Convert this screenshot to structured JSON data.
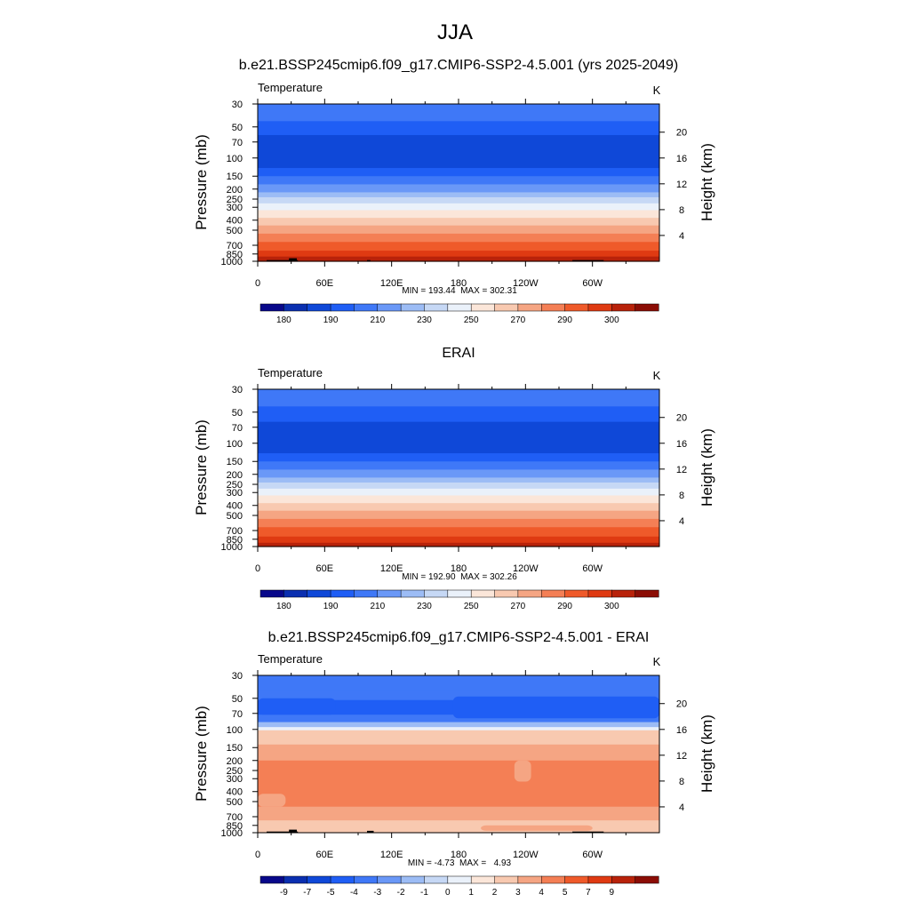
{
  "figure_title": "JJA",
  "chart_data": [
    {
      "type": "heatmap",
      "title": "b.e21.BSSP245cmip6.f09_g17.CMIP6-SSP2-4.5.001 (yrs 2025-2049)",
      "variable": "Temperature",
      "units": "K",
      "ylabel": "Pressure (mb)",
      "ylabel_right": "Height (km)",
      "x_ticks": [
        "0",
        "60E",
        "120E",
        "180",
        "120W",
        "60W"
      ],
      "x_tick_lon": [
        0,
        60,
        120,
        180,
        240,
        300
      ],
      "y_ticks": [
        "30",
        "50",
        "70",
        "100",
        "150",
        "200",
        "250",
        "300",
        "400",
        "500",
        "700",
        "850",
        "1000"
      ],
      "y_tick_p": [
        30,
        50,
        70,
        100,
        150,
        200,
        250,
        300,
        400,
        500,
        700,
        850,
        1000
      ],
      "height_ticks": [
        "20",
        "16",
        "12",
        "8",
        "4"
      ],
      "height_km": [
        20,
        16,
        12,
        8,
        4
      ],
      "stats_text": "MIN = 193.44  MAX = 302.31",
      "min": 193.44,
      "max": 302.31,
      "colorbar_labels": [
        "180",
        "190",
        "210",
        "230",
        "250",
        "270",
        "290",
        "300"
      ],
      "colorbar_colors": [
        "#08088a",
        "#0a2fb0",
        "#0f48d8",
        "#1f5ef5",
        "#3f78f7",
        "#6a98f7",
        "#9cbcf5",
        "#c6d8f5",
        "#eaf1fa",
        "#fbe6d9",
        "#f8c9b0",
        "#f5a583",
        "#f47f55",
        "#ef5a2a",
        "#df3a12",
        "#b8220a",
        "#8b0d05"
      ],
      "layers": [
        {
          "p_top": 30,
          "p_bot": 44,
          "color": "#3f78f7"
        },
        {
          "p_top": 44,
          "p_bot": 60,
          "color": "#1f5ef5"
        },
        {
          "p_top": 60,
          "p_bot": 125,
          "color": "#0f48d8"
        },
        {
          "p_top": 125,
          "p_bot": 150,
          "color": "#1f5ef5"
        },
        {
          "p_top": 150,
          "p_bot": 180,
          "color": "#3f78f7"
        },
        {
          "p_top": 180,
          "p_bot": 215,
          "color": "#6a98f7"
        },
        {
          "p_top": 215,
          "p_bot": 240,
          "color": "#9cbcf5"
        },
        {
          "p_top": 240,
          "p_bot": 275,
          "color": "#c6d8f5"
        },
        {
          "p_top": 275,
          "p_bot": 320,
          "color": "#eaf1fa"
        },
        {
          "p_top": 320,
          "p_bot": 380,
          "color": "#fbe6d9"
        },
        {
          "p_top": 380,
          "p_bot": 450,
          "color": "#f8c9b0"
        },
        {
          "p_top": 450,
          "p_bot": 540,
          "color": "#f5a583"
        },
        {
          "p_top": 540,
          "p_bot": 650,
          "color": "#f47f55"
        },
        {
          "p_top": 650,
          "p_bot": 790,
          "color": "#ef5a2a"
        },
        {
          "p_top": 790,
          "p_bot": 900,
          "color": "#df3a12"
        },
        {
          "p_top": 900,
          "p_bot": 1000,
          "color": "#b8220a"
        }
      ],
      "terrain": [
        {
          "lon0": 8,
          "lon1": 36,
          "p": 975
        },
        {
          "lon0": 28,
          "lon1": 35,
          "p": 935
        },
        {
          "lon0": 98,
          "lon1": 101,
          "p": 975
        },
        {
          "lon0": 282,
          "lon1": 310,
          "p": 975
        }
      ]
    },
    {
      "type": "heatmap",
      "title": "ERAI",
      "variable": "Temperature",
      "units": "K",
      "ylabel": "Pressure (mb)",
      "ylabel_right": "Height (km)",
      "x_ticks": [
        "0",
        "60E",
        "120E",
        "180",
        "120W",
        "60W"
      ],
      "x_tick_lon": [
        0,
        60,
        120,
        180,
        240,
        300
      ],
      "y_ticks": [
        "30",
        "50",
        "70",
        "100",
        "150",
        "200",
        "250",
        "300",
        "400",
        "500",
        "700",
        "850",
        "1000"
      ],
      "y_tick_p": [
        30,
        50,
        70,
        100,
        150,
        200,
        250,
        300,
        400,
        500,
        700,
        850,
        1000
      ],
      "height_ticks": [
        "20",
        "16",
        "12",
        "8",
        "4"
      ],
      "height_km": [
        20,
        16,
        12,
        8,
        4
      ],
      "stats_text": "MIN = 192.90  MAX = 302.26",
      "min": 192.9,
      "max": 302.26,
      "colorbar_labels": [
        "180",
        "190",
        "210",
        "230",
        "250",
        "270",
        "290",
        "300"
      ],
      "colorbar_colors": [
        "#08088a",
        "#0a2fb0",
        "#0f48d8",
        "#1f5ef5",
        "#3f78f7",
        "#6a98f7",
        "#9cbcf5",
        "#c6d8f5",
        "#eaf1fa",
        "#fbe6d9",
        "#f8c9b0",
        "#f5a583",
        "#f47f55",
        "#ef5a2a",
        "#df3a12",
        "#b8220a",
        "#8b0d05"
      ],
      "layers": [
        {
          "p_top": 30,
          "p_bot": 44,
          "color": "#3f78f7"
        },
        {
          "p_top": 44,
          "p_bot": 62,
          "color": "#1f5ef5"
        },
        {
          "p_top": 62,
          "p_bot": 125,
          "color": "#0f48d8"
        },
        {
          "p_top": 125,
          "p_bot": 150,
          "color": "#1f5ef5"
        },
        {
          "p_top": 150,
          "p_bot": 180,
          "color": "#3f78f7"
        },
        {
          "p_top": 180,
          "p_bot": 215,
          "color": "#6a98f7"
        },
        {
          "p_top": 215,
          "p_bot": 240,
          "color": "#9cbcf5"
        },
        {
          "p_top": 240,
          "p_bot": 275,
          "color": "#c6d8f5"
        },
        {
          "p_top": 275,
          "p_bot": 320,
          "color": "#eaf1fa"
        },
        {
          "p_top": 320,
          "p_bot": 380,
          "color": "#fbe6d9"
        },
        {
          "p_top": 380,
          "p_bot": 450,
          "color": "#f8c9b0"
        },
        {
          "p_top": 450,
          "p_bot": 540,
          "color": "#f5a583"
        },
        {
          "p_top": 540,
          "p_bot": 650,
          "color": "#f47f55"
        },
        {
          "p_top": 650,
          "p_bot": 800,
          "color": "#ef5a2a"
        },
        {
          "p_top": 800,
          "p_bot": 920,
          "color": "#df3a12"
        },
        {
          "p_top": 920,
          "p_bot": 1000,
          "color": "#b8220a"
        }
      ],
      "terrain": []
    },
    {
      "type": "heatmap",
      "title": "b.e21.BSSP245cmip6.f09_g17.CMIP6-SSP2-4.5.001 - ERAI",
      "variable": "Temperature",
      "units": "K",
      "ylabel": "Pressure (mb)",
      "ylabel_right": "Height (km)",
      "x_ticks": [
        "0",
        "60E",
        "120E",
        "180",
        "120W",
        "60W"
      ],
      "x_tick_lon": [
        0,
        60,
        120,
        180,
        240,
        300
      ],
      "y_ticks": [
        "30",
        "50",
        "70",
        "100",
        "150",
        "200",
        "250",
        "300",
        "400",
        "500",
        "700",
        "850",
        "1000"
      ],
      "y_tick_p": [
        30,
        50,
        70,
        100,
        150,
        200,
        250,
        300,
        400,
        500,
        700,
        850,
        1000
      ],
      "height_ticks": [
        "20",
        "16",
        "12",
        "8",
        "4"
      ],
      "height_km": [
        20,
        16,
        12,
        8,
        4
      ],
      "stats_text": "MIN = -4.73  MAX =   4.93",
      "min": -4.73,
      "max": 4.93,
      "colorbar_labels": [
        "-9",
        "-7",
        "-5",
        "-4",
        "-3",
        "-2",
        "-1",
        "0",
        "1",
        "2",
        "3",
        "4",
        "5",
        "7",
        "9"
      ],
      "colorbar_colors": [
        "#08088a",
        "#0a2fb0",
        "#0f48d8",
        "#1f5ef5",
        "#3f78f7",
        "#6a98f7",
        "#9cbcf5",
        "#c6d8f5",
        "#eaf1fa",
        "#fbe6d9",
        "#f8c9b0",
        "#f5a583",
        "#f47f55",
        "#ef5a2a",
        "#df3a12",
        "#b8220a",
        "#8b0d05"
      ],
      "layers": [
        {
          "p_top": 30,
          "p_bot": 42,
          "color": "#3f78f7"
        },
        {
          "p_top": 42,
          "p_bot": 52,
          "color": "#3f78f7"
        },
        {
          "p_top": 52,
          "p_bot": 72,
          "color": "#1f5ef5"
        },
        {
          "p_top": 72,
          "p_bot": 85,
          "color": "#3f78f7"
        },
        {
          "p_top": 85,
          "p_bot": 95,
          "color": "#9cbcf5"
        },
        {
          "p_top": 95,
          "p_bot": 102,
          "color": "#eaf1fa"
        },
        {
          "p_top": 102,
          "p_bot": 140,
          "color": "#f8c9b0"
        },
        {
          "p_top": 140,
          "p_bot": 200,
          "color": "#f5a583"
        },
        {
          "p_top": 200,
          "p_bot": 560,
          "color": "#f47f55"
        },
        {
          "p_top": 560,
          "p_bot": 760,
          "color": "#f5a583"
        },
        {
          "p_top": 760,
          "p_bot": 1000,
          "color": "#f8c9b0"
        }
      ],
      "terrain": [
        {
          "lon0": 8,
          "lon1": 36,
          "p": 975
        },
        {
          "lon0": 28,
          "lon1": 35,
          "p": 935
        },
        {
          "lon0": 98,
          "lon1": 104,
          "p": 960
        },
        {
          "lon0": 282,
          "lon1": 310,
          "p": 975
        }
      ]
    }
  ]
}
